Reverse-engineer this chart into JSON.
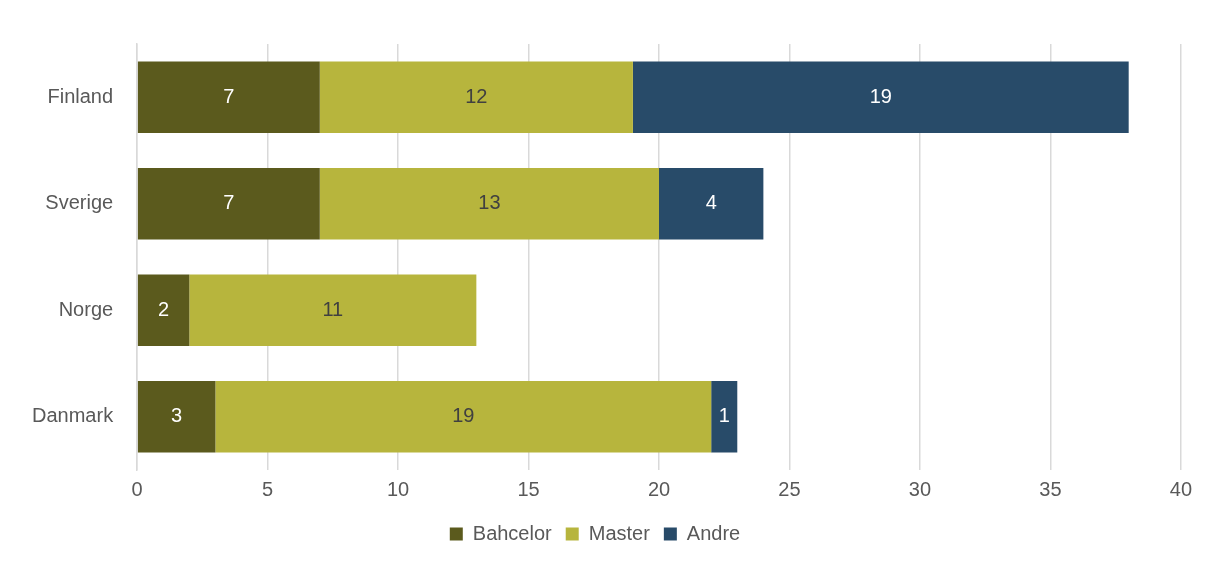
{
  "chart_data": {
    "type": "bar",
    "orientation": "horizontal",
    "stacked": true,
    "categories": [
      "Finland",
      "Sverige",
      "Norge",
      "Danmark"
    ],
    "series": [
      {
        "name": "Bahcelor",
        "color": "#5b5a1d",
        "values": [
          7,
          7,
          2,
          3
        ]
      },
      {
        "name": "Master",
        "color": "#b7b53d",
        "values": [
          12,
          13,
          11,
          19
        ]
      },
      {
        "name": "Andre",
        "color": "#284b69",
        "values": [
          19,
          4,
          null,
          1
        ]
      }
    ],
    "xlim": [
      0,
      40
    ],
    "xticks": [
      0,
      5,
      10,
      15,
      20,
      25,
      30,
      35,
      40
    ],
    "grid": "x",
    "legend": "bottom",
    "data_labels": true
  }
}
